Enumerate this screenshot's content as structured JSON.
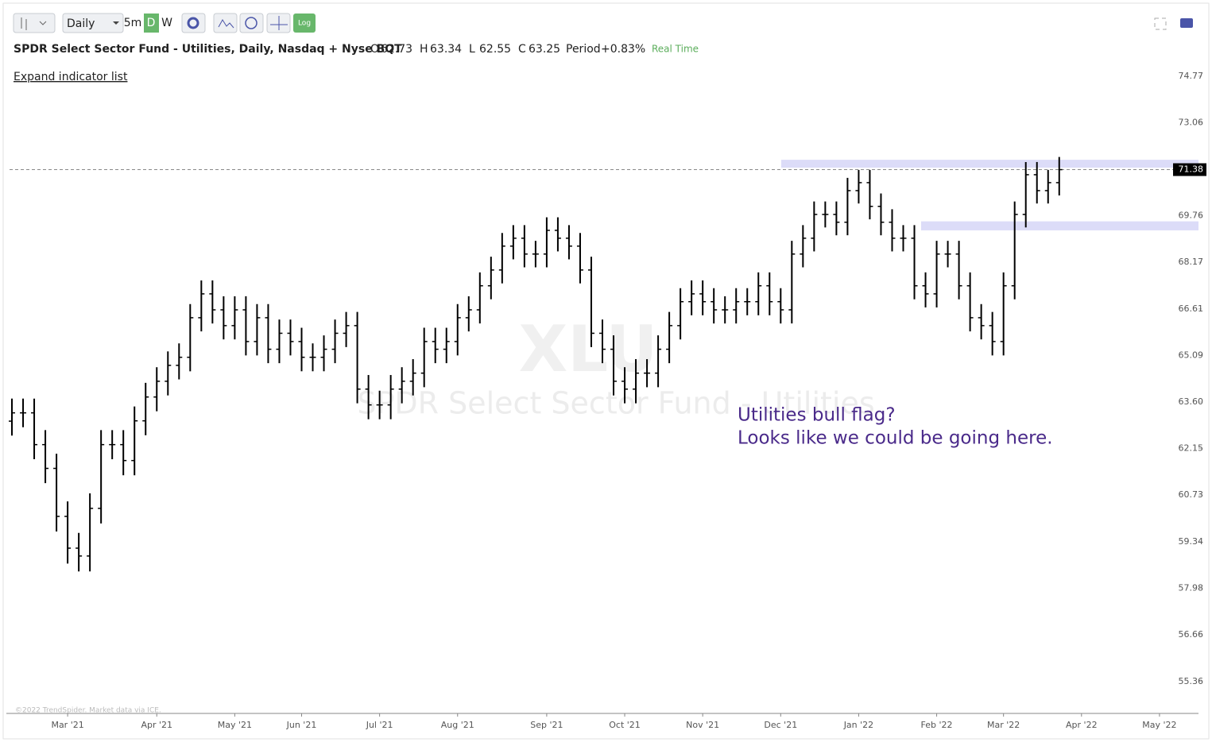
{
  "toolbar": {
    "interval": "Daily",
    "buttons": [
      "5m",
      "D",
      "W",
      "Log"
    ]
  },
  "header": {
    "title": "SPDR Select Sector Fund - Utilities, Daily, Nasdaq + Nyse BQT",
    "ohlc": [
      [
        "O",
        "62.73"
      ],
      [
        "H",
        "63.34"
      ],
      [
        "L",
        "62.55"
      ],
      [
        "C",
        "63.25"
      ]
    ],
    "period_label": "Period",
    "period": "+0.83%",
    "status": "Real Time",
    "expand": "Expand indicator list"
  },
  "chart_data": {
    "type": "ohlc",
    "watermark": "XLU",
    "watermark_subtitle": "SPDR Select Sector Fund - Utilities",
    "annotation": [
      "Utilities bull flag?",
      "Looks like we could be going here."
    ],
    "credit": "©2022 TrendSpider. Market data via ICE.",
    "log_scale": true,
    "color": "#000000",
    "ylim": [
      54.49,
      75.24
    ],
    "yticks": [
      55.36,
      56.66,
      57.98,
      59.34,
      60.73,
      62.15,
      {
        "value": 63.6,
        "label": "63.60"
      },
      65.09,
      66.61,
      68.17,
      69.76,
      73.06,
      74.77
    ],
    "last_price": 71.38,
    "zones": [
      {
        "from": 71.45,
        "to": 71.73,
        "color": "#dcdcf8"
      },
      {
        "from": 69.26,
        "to": 69.57,
        "color": "#dcdcf8"
      }
    ],
    "categories": [
      null,
      null,
      null,
      null,
      null,
      "Mar '21",
      null,
      null,
      null,
      null,
      null,
      null,
      null,
      "Apr '21",
      null,
      null,
      null,
      null,
      null,
      null,
      "May '21",
      null,
      null,
      null,
      null,
      null,
      "Jun '21",
      null,
      null,
      null,
      null,
      null,
      null,
      "Jul '21",
      null,
      null,
      null,
      null,
      null,
      null,
      "Aug '21",
      null,
      null,
      null,
      null,
      null,
      null,
      null,
      "Sep '21",
      null,
      null,
      null,
      null,
      null,
      null,
      "Oct '21",
      null,
      null,
      null,
      null,
      null,
      null,
      "Nov '21",
      null,
      null,
      null,
      null,
      null,
      null,
      "Dec '21",
      null,
      null,
      null,
      null,
      null,
      null,
      "Jan '22",
      null,
      null,
      null,
      null,
      null,
      null,
      "Feb '22",
      null,
      null,
      null,
      null,
      null,
      "Mar '22",
      null,
      null,
      null,
      null,
      null,
      null,
      "Apr '22",
      null,
      null,
      null,
      null,
      null,
      null,
      "May '22",
      null,
      null,
      null
    ],
    "open": [
      63.0,
      63.26,
      63.26,
      62.27,
      61.54,
      60.09,
      59.15,
      58.92,
      60.33,
      62.27,
      62.27,
      61.78,
      63.01,
      63.76,
      64.26,
      64.77,
      65.03,
      66.32,
      67.11,
      66.58,
      66.06,
      66.58,
      65.54,
      66.32,
      65.29,
      65.81,
      65.54,
      65.03,
      65.03,
      65.29,
      65.81,
      66.06,
      64.01,
      63.51,
      63.51,
      64.01,
      64.26,
      64.52,
      65.54,
      65.29,
      65.54,
      66.32,
      66.58,
      67.38,
      67.91,
      68.72,
      68.99,
      68.45,
      68.45,
      69.26,
      68.99,
      68.72,
      67.91,
      65.81,
      65.29,
      64.26,
      64.01,
      64.52,
      64.52,
      65.29,
      66.06,
      66.85,
      67.11,
      66.85,
      66.58,
      66.58,
      66.85,
      66.85,
      67.38,
      66.85,
      66.58,
      68.45,
      68.99,
      69.81,
      69.81,
      69.54,
      70.64,
      70.92,
      70.09,
      69.54,
      68.99,
      68.99,
      67.38,
      67.11,
      68.45,
      68.45,
      67.38,
      66.32,
      66.06,
      65.54,
      67.38,
      69.81,
      71.2,
      70.64,
      70.92,
      null,
      null,
      null,
      null,
      null,
      null,
      null,
      null,
      null,
      null,
      null,
      null
    ],
    "high": [
      63.71,
      63.71,
      63.71,
      62.72,
      61.99,
      60.54,
      59.6,
      60.78,
      62.72,
      62.72,
      62.72,
      63.46,
      64.21,
      64.71,
      65.22,
      65.48,
      66.77,
      67.56,
      67.56,
      67.03,
      67.03,
      67.03,
      66.77,
      66.77,
      66.26,
      66.26,
      65.99,
      65.48,
      65.74,
      66.26,
      66.51,
      66.51,
      64.46,
      63.96,
      64.46,
      64.71,
      64.97,
      65.99,
      65.99,
      65.99,
      66.77,
      67.03,
      67.83,
      68.36,
      69.17,
      69.44,
      69.44,
      68.9,
      69.71,
      69.71,
      69.44,
      69.17,
      68.36,
      66.26,
      65.74,
      64.71,
      64.97,
      64.97,
      65.74,
      66.51,
      67.3,
      67.56,
      67.56,
      67.3,
      67.03,
      67.3,
      67.3,
      67.83,
      67.83,
      67.3,
      68.9,
      69.44,
      70.26,
      70.26,
      70.26,
      71.09,
      71.37,
      71.37,
      70.54,
      69.99,
      69.44,
      69.44,
      67.83,
      68.9,
      68.9,
      68.9,
      67.83,
      66.77,
      66.51,
      67.83,
      70.26,
      71.65,
      71.65,
      71.37,
      71.83,
      null,
      null,
      null,
      null,
      null,
      null,
      null,
      null,
      null,
      null,
      null,
      null
    ],
    "low": [
      62.55,
      62.81,
      61.82,
      61.09,
      59.64,
      58.7,
      58.47,
      58.47,
      59.88,
      61.82,
      61.33,
      61.33,
      62.56,
      63.31,
      63.81,
      64.32,
      64.58,
      65.87,
      66.13,
      65.61,
      65.61,
      65.09,
      65.09,
      64.84,
      64.84,
      65.09,
      64.58,
      64.58,
      64.58,
      64.84,
      65.36,
      63.56,
      63.06,
      63.06,
      63.06,
      63.56,
      63.81,
      64.07,
      64.84,
      64.84,
      65.09,
      65.87,
      66.13,
      66.93,
      67.46,
      68.27,
      68.0,
      68.0,
      68.0,
      68.54,
      68.27,
      67.46,
      65.36,
      64.84,
      63.81,
      63.56,
      63.56,
      64.07,
      64.07,
      64.84,
      65.61,
      66.4,
      66.4,
      66.13,
      66.13,
      66.13,
      66.4,
      66.4,
      66.4,
      66.13,
      66.13,
      68.0,
      68.54,
      69.36,
      69.09,
      69.09,
      70.19,
      69.64,
      69.09,
      68.54,
      68.54,
      66.93,
      66.66,
      66.66,
      68.0,
      66.93,
      65.87,
      65.61,
      65.09,
      65.09,
      66.93,
      69.36,
      70.19,
      70.19,
      70.47,
      null,
      null,
      null,
      null,
      null,
      null,
      null,
      null,
      null,
      null,
      null,
      null
    ],
    "close": [
      63.26,
      63.26,
      62.27,
      61.54,
      60.09,
      59.15,
      58.92,
      60.33,
      62.27,
      62.27,
      61.78,
      63.01,
      63.76,
      64.26,
      64.77,
      65.03,
      66.32,
      67.11,
      66.58,
      66.06,
      66.58,
      65.54,
      66.32,
      65.29,
      65.81,
      65.54,
      65.03,
      65.03,
      65.29,
      65.81,
      66.06,
      64.01,
      63.51,
      63.51,
      64.01,
      64.26,
      64.52,
      65.54,
      65.29,
      65.54,
      66.32,
      66.58,
      67.38,
      67.91,
      68.72,
      68.99,
      68.45,
      68.45,
      69.26,
      68.99,
      68.72,
      67.91,
      65.81,
      65.29,
      64.26,
      64.01,
      64.52,
      64.52,
      65.29,
      66.06,
      66.85,
      67.11,
      66.85,
      66.58,
      66.58,
      66.85,
      66.85,
      67.38,
      66.85,
      66.58,
      68.45,
      68.99,
      69.81,
      69.81,
      69.54,
      70.64,
      70.92,
      70.09,
      69.54,
      68.99,
      68.99,
      67.38,
      67.11,
      68.45,
      68.45,
      67.38,
      66.32,
      66.06,
      65.54,
      67.38,
      69.81,
      71.2,
      70.64,
      70.92,
      71.38,
      null,
      null,
      null,
      null,
      null,
      null,
      null,
      null,
      null,
      null,
      null,
      null
    ]
  }
}
